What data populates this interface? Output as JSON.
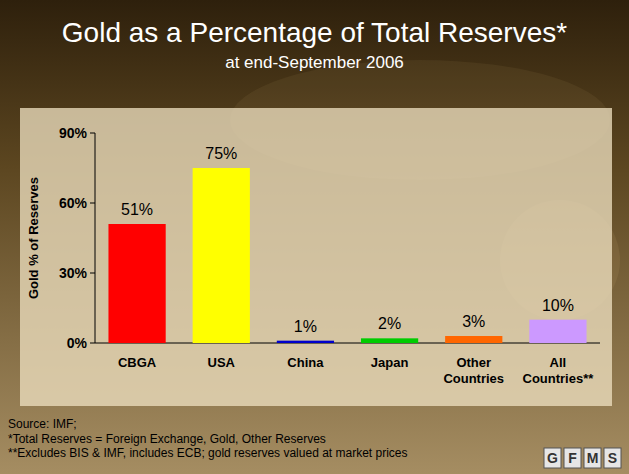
{
  "chart_data": {
    "type": "bar",
    "title": "Gold as a Percentage of Total Reserves*",
    "subtitle": "at end-September 2006",
    "y_label": "Gold % of Reserves",
    "categories": [
      "CBGA",
      "USA",
      "China",
      "Japan",
      "Other Countries",
      "All Countries**"
    ],
    "values": [
      51,
      75,
      1,
      2,
      3,
      10
    ],
    "value_labels": [
      "51%",
      "75%",
      "1%",
      "2%",
      "3%",
      "10%"
    ],
    "colors": [
      "#ff0000",
      "#ffff00",
      "#0000cc",
      "#00cc00",
      "#ff6600",
      "#cc99ff"
    ],
    "data_labels": true,
    "grid": false,
    "ylim": [
      0,
      90
    ],
    "yticks": [
      {
        "value": 0,
        "label": "0%"
      },
      {
        "value": 30,
        "label": "30%"
      },
      {
        "value": 60,
        "label": "60%"
      },
      {
        "value": 90,
        "label": "90%"
      }
    ],
    "source": "Source: IMF;",
    "notes": [
      "*Total Reserves = Foreign Exchange, Gold, Other Reserves",
      "**Excludes BIS & IMF, includes ECB; gold reserves valued at market prices"
    ],
    "logo": "GFMS"
  }
}
